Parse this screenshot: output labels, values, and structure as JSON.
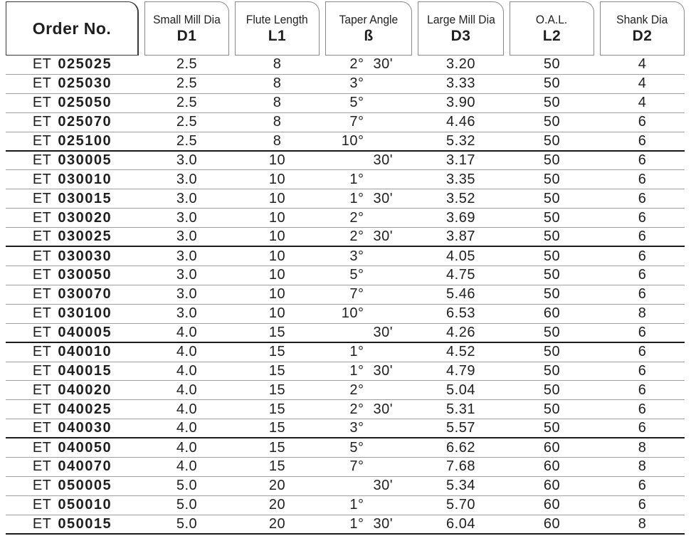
{
  "colors": {
    "text": "#1f1f1f",
    "thin_line": "#a0a0a0",
    "thick_line": "#1a1a1a",
    "header_border": "#8a8a8a",
    "order_box_border": "#3a3a3a",
    "background": "#ffffff"
  },
  "table": {
    "columns": [
      {
        "label": "Order No.",
        "sub": ""
      },
      {
        "label": "Small Mill Dia",
        "sub": "D1"
      },
      {
        "label": "Flute Length",
        "sub": "L1"
      },
      {
        "label": "Taper Angle",
        "sub": "ß"
      },
      {
        "label": "Large Mill Dia",
        "sub": "D3"
      },
      {
        "label": "O.A.L.",
        "sub": "L2"
      },
      {
        "label": "Shank Dia",
        "sub": "D2"
      }
    ],
    "rows": [
      {
        "order_prefix": "ET",
        "order_number": "025025",
        "d1": "2.5",
        "l1": "8",
        "angle_deg": "2°",
        "angle_min": "30'",
        "d3": "3.20",
        "l2": "50",
        "d2": "4",
        "group_end": false
      },
      {
        "order_prefix": "ET",
        "order_number": "025030",
        "d1": "2.5",
        "l1": "8",
        "angle_deg": "3°",
        "angle_min": "",
        "d3": "3.33",
        "l2": "50",
        "d2": "4",
        "group_end": false
      },
      {
        "order_prefix": "ET",
        "order_number": "025050",
        "d1": "2.5",
        "l1": "8",
        "angle_deg": "5°",
        "angle_min": "",
        "d3": "3.90",
        "l2": "50",
        "d2": "4",
        "group_end": false
      },
      {
        "order_prefix": "ET",
        "order_number": "025070",
        "d1": "2.5",
        "l1": "8",
        "angle_deg": "7°",
        "angle_min": "",
        "d3": "4.46",
        "l2": "50",
        "d2": "6",
        "group_end": false
      },
      {
        "order_prefix": "ET",
        "order_number": "025100",
        "d1": "2.5",
        "l1": "8",
        "angle_deg": "10°",
        "angle_min": "",
        "d3": "5.32",
        "l2": "50",
        "d2": "6",
        "group_end": true
      },
      {
        "order_prefix": "ET",
        "order_number": "030005",
        "d1": "3.0",
        "l1": "10",
        "angle_deg": "",
        "angle_min": "30'",
        "d3": "3.17",
        "l2": "50",
        "d2": "6",
        "group_end": false
      },
      {
        "order_prefix": "ET",
        "order_number": "030010",
        "d1": "3.0",
        "l1": "10",
        "angle_deg": "1°",
        "angle_min": "",
        "d3": "3.35",
        "l2": "50",
        "d2": "6",
        "group_end": false
      },
      {
        "order_prefix": "ET",
        "order_number": "030015",
        "d1": "3.0",
        "l1": "10",
        "angle_deg": "1°",
        "angle_min": "30'",
        "d3": "3.52",
        "l2": "50",
        "d2": "6",
        "group_end": false
      },
      {
        "order_prefix": "ET",
        "order_number": "030020",
        "d1": "3.0",
        "l1": "10",
        "angle_deg": "2°",
        "angle_min": "",
        "d3": "3.69",
        "l2": "50",
        "d2": "6",
        "group_end": false
      },
      {
        "order_prefix": "ET",
        "order_number": "030025",
        "d1": "3.0",
        "l1": "10",
        "angle_deg": "2°",
        "angle_min": "30'",
        "d3": "3.87",
        "l2": "50",
        "d2": "6",
        "group_end": true
      },
      {
        "order_prefix": "ET",
        "order_number": "030030",
        "d1": "3.0",
        "l1": "10",
        "angle_deg": "3°",
        "angle_min": "",
        "d3": "4.05",
        "l2": "50",
        "d2": "6",
        "group_end": false
      },
      {
        "order_prefix": "ET",
        "order_number": "030050",
        "d1": "3.0",
        "l1": "10",
        "angle_deg": "5°",
        "angle_min": "",
        "d3": "4.75",
        "l2": "50",
        "d2": "6",
        "group_end": false
      },
      {
        "order_prefix": "ET",
        "order_number": "030070",
        "d1": "3.0",
        "l1": "10",
        "angle_deg": "7°",
        "angle_min": "",
        "d3": "5.46",
        "l2": "50",
        "d2": "6",
        "group_end": false
      },
      {
        "order_prefix": "ET",
        "order_number": "030100",
        "d1": "3.0",
        "l1": "10",
        "angle_deg": "10°",
        "angle_min": "",
        "d3": "6.53",
        "l2": "60",
        "d2": "8",
        "group_end": false
      },
      {
        "order_prefix": "ET",
        "order_number": "040005",
        "d1": "4.0",
        "l1": "15",
        "angle_deg": "",
        "angle_min": "30'",
        "d3": "4.26",
        "l2": "50",
        "d2": "6",
        "group_end": true
      },
      {
        "order_prefix": "ET",
        "order_number": "040010",
        "d1": "4.0",
        "l1": "15",
        "angle_deg": "1°",
        "angle_min": "",
        "d3": "4.52",
        "l2": "50",
        "d2": "6",
        "group_end": false
      },
      {
        "order_prefix": "ET",
        "order_number": "040015",
        "d1": "4.0",
        "l1": "15",
        "angle_deg": "1°",
        "angle_min": "30'",
        "d3": "4.79",
        "l2": "50",
        "d2": "6",
        "group_end": false
      },
      {
        "order_prefix": "ET",
        "order_number": "040020",
        "d1": "4.0",
        "l1": "15",
        "angle_deg": "2°",
        "angle_min": "",
        "d3": "5.04",
        "l2": "50",
        "d2": "6",
        "group_end": false
      },
      {
        "order_prefix": "ET",
        "order_number": "040025",
        "d1": "4.0",
        "l1": "15",
        "angle_deg": "2°",
        "angle_min": "30'",
        "d3": "5.31",
        "l2": "50",
        "d2": "6",
        "group_end": false
      },
      {
        "order_prefix": "ET",
        "order_number": "040030",
        "d1": "4.0",
        "l1": "15",
        "angle_deg": "3°",
        "angle_min": "",
        "d3": "5.57",
        "l2": "50",
        "d2": "6",
        "group_end": true
      },
      {
        "order_prefix": "ET",
        "order_number": "040050",
        "d1": "4.0",
        "l1": "15",
        "angle_deg": "5°",
        "angle_min": "",
        "d3": "6.62",
        "l2": "60",
        "d2": "8",
        "group_end": false
      },
      {
        "order_prefix": "ET",
        "order_number": "040070",
        "d1": "4.0",
        "l1": "15",
        "angle_deg": "7°",
        "angle_min": "",
        "d3": "7.68",
        "l2": "60",
        "d2": "8",
        "group_end": false
      },
      {
        "order_prefix": "ET",
        "order_number": "050005",
        "d1": "5.0",
        "l1": "20",
        "angle_deg": "",
        "angle_min": "30'",
        "d3": "5.34",
        "l2": "60",
        "d2": "6",
        "group_end": false
      },
      {
        "order_prefix": "ET",
        "order_number": "050010",
        "d1": "5.0",
        "l1": "20",
        "angle_deg": "1°",
        "angle_min": "",
        "d3": "5.70",
        "l2": "60",
        "d2": "6",
        "group_end": false
      },
      {
        "order_prefix": "ET",
        "order_number": "050015",
        "d1": "5.0",
        "l1": "20",
        "angle_deg": "1°",
        "angle_min": "30'",
        "d3": "6.04",
        "l2": "60",
        "d2": "8",
        "group_end": true
      }
    ]
  }
}
